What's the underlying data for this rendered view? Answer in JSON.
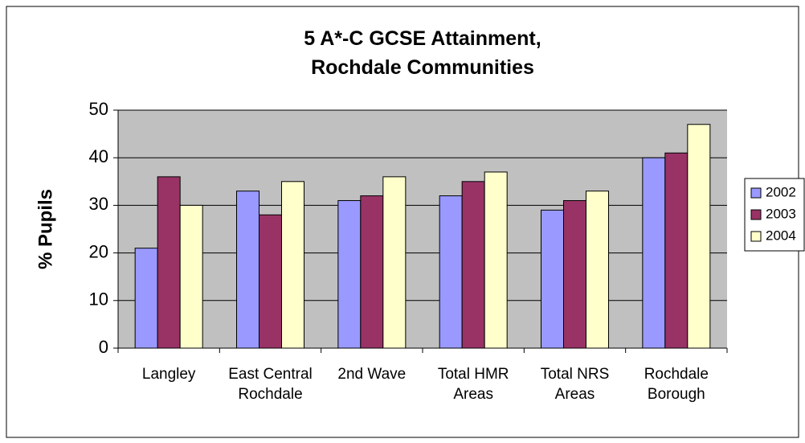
{
  "chart_data": {
    "type": "bar",
    "title": "5 A*-C GCSE Attainment, Rochdale Communities",
    "y_label": "% Pupils",
    "categories": [
      "Langley",
      "East Central Rochdale",
      "2nd Wave",
      "Total HMR Areas",
      "Total NRS Areas",
      "Rochdale Borough"
    ],
    "series": [
      {
        "name": "2002",
        "color": "#9999ff",
        "values": [
          21,
          33,
          31,
          32,
          29,
          40
        ]
      },
      {
        "name": "2003",
        "color": "#993366",
        "values": [
          36,
          28,
          32,
          35,
          31,
          41
        ]
      },
      {
        "name": "2004",
        "color": "#ffffcc",
        "values": [
          30,
          35,
          36,
          37,
          33,
          47
        ]
      }
    ],
    "ylim": [
      0,
      50
    ],
    "yticks": [
      0,
      10,
      20,
      30,
      40,
      50
    ],
    "grid": true,
    "legend": "right"
  }
}
